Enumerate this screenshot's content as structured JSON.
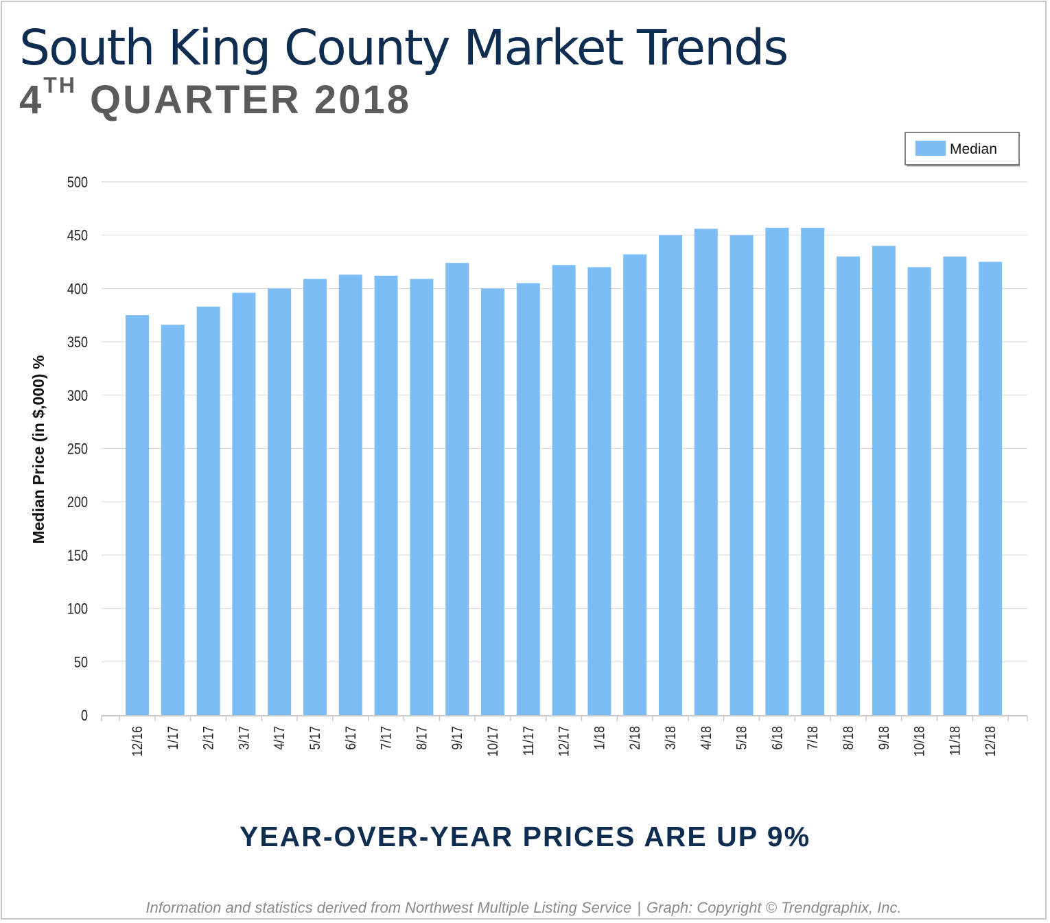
{
  "header": {
    "title": "South King County Market Trends",
    "subtitle_number": "4",
    "subtitle_suffix": "TH",
    "subtitle_rest": "QUARTER 2018"
  },
  "headline": "YEAR-OVER-YEAR PRICES ARE UP 9%",
  "footer": {
    "source": "Information and statistics derived from Northwest Multiple Listing Service",
    "separator": "|",
    "copyright": "Graph: Copyright © Trendgraphix, Inc."
  },
  "colors": {
    "bar": "#7dbdf5",
    "title": "#0f2d50",
    "subtitle": "#5b5b5b",
    "grid": "#dcdcdc"
  },
  "chart_data": {
    "type": "bar",
    "ylabel": "Median Price (in $,000) %",
    "xlabel": "",
    "ylim": [
      0,
      500
    ],
    "yticks": [
      "0",
      "50",
      "100",
      "150",
      "200",
      "250",
      "300",
      "350",
      "400",
      "450",
      "500"
    ],
    "grid": true,
    "legend_position": "top-right",
    "categories": [
      "12/16",
      "1/17",
      "2/17",
      "3/17",
      "4/17",
      "5/17",
      "6/17",
      "7/17",
      "8/17",
      "9/17",
      "10/17",
      "11/17",
      "12/17",
      "1/18",
      "2/18",
      "3/18",
      "4/18",
      "5/18",
      "6/18",
      "7/18",
      "8/18",
      "9/18",
      "10/18",
      "11/18",
      "12/18"
    ],
    "series": [
      {
        "name": "Median",
        "values": [
          375,
          366,
          383,
          396,
          400,
          409,
          413,
          412,
          409,
          424,
          400,
          405,
          422,
          420,
          432,
          450,
          456,
          450,
          457,
          457,
          430,
          440,
          420,
          430,
          425
        ]
      }
    ]
  }
}
